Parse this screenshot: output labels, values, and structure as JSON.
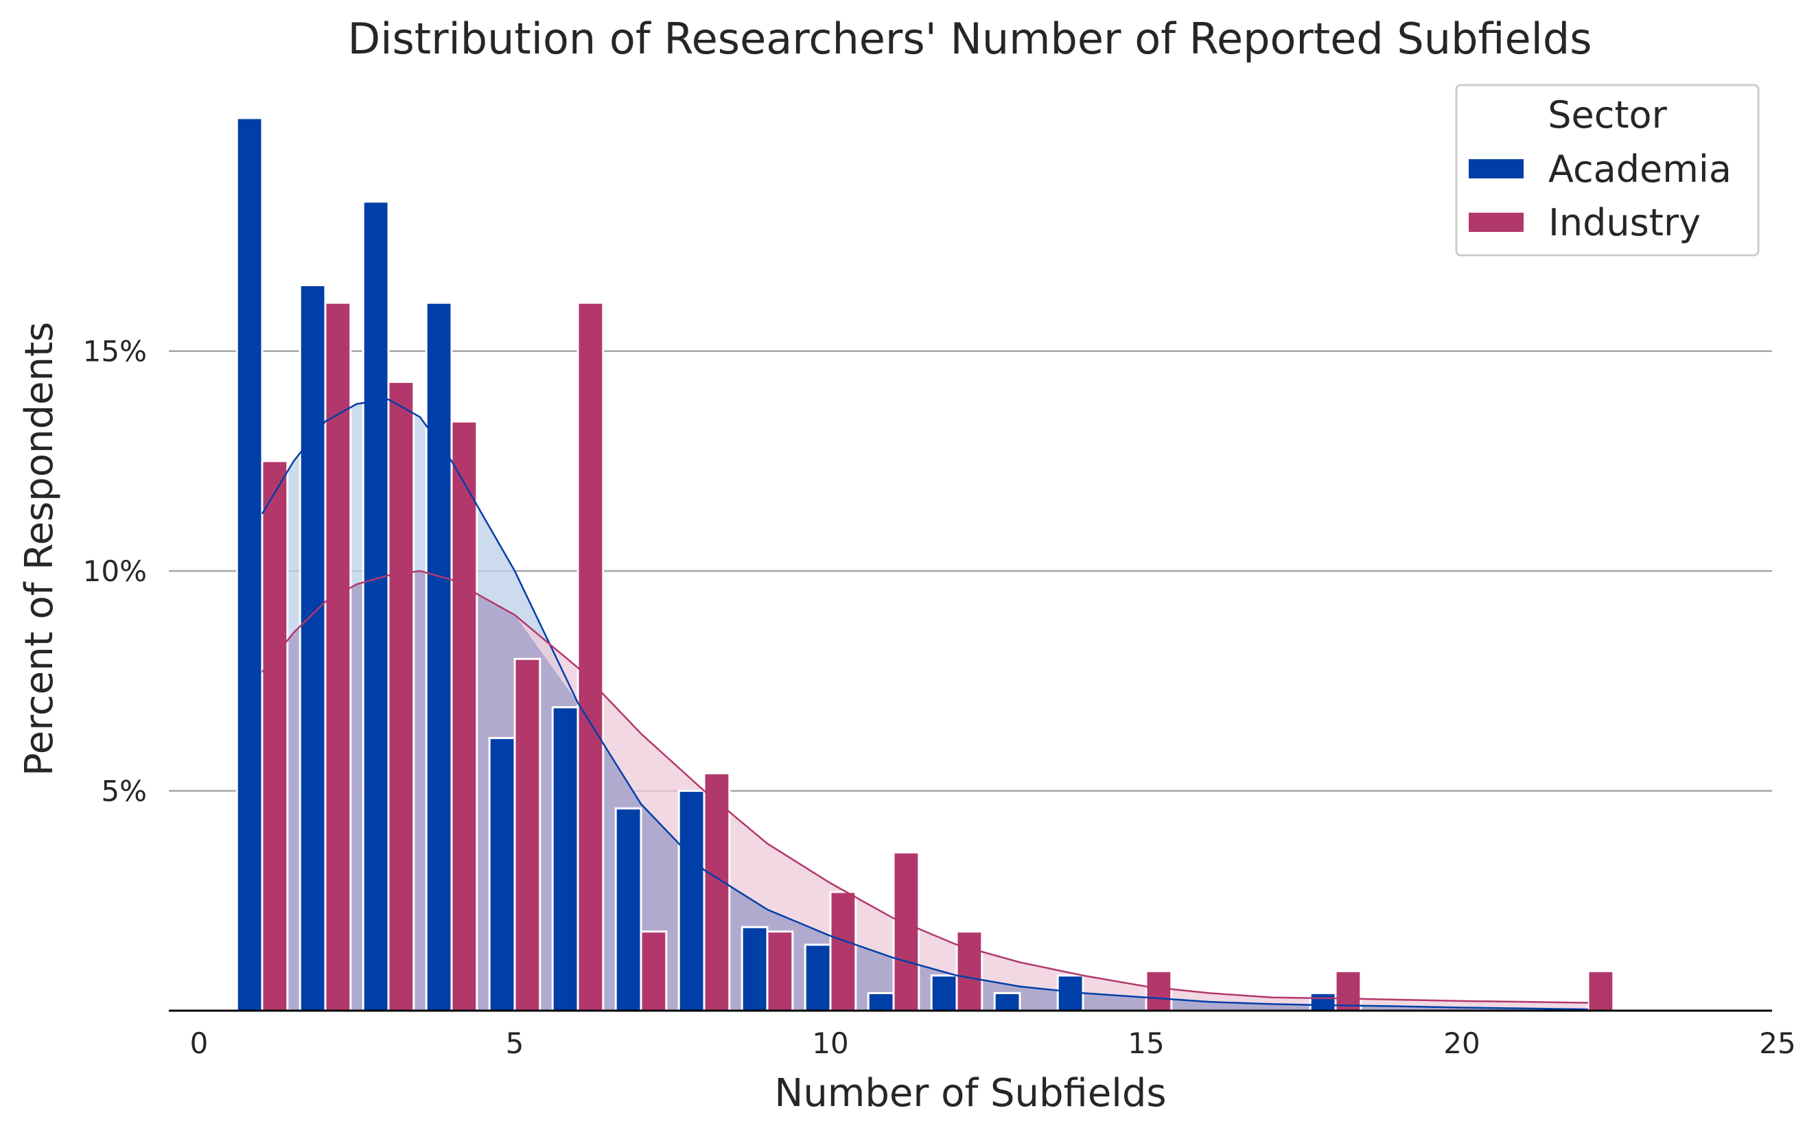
{
  "chart_data": {
    "type": "bar",
    "title": "Distribution of Researchers' Number of Reported Subfields",
    "xlabel": "Number of Subfields",
    "ylabel": "Percent of Respondents",
    "xlim": [
      -0.5,
      25
    ],
    "ylim": [
      0,
      20.8
    ],
    "x_ticks": [
      0,
      5,
      10,
      15,
      20,
      25
    ],
    "y_ticks": [
      5,
      10,
      15
    ],
    "y_tick_format": "%",
    "grid": "horizontal",
    "legend": {
      "title": "Sector",
      "position": "top-right"
    },
    "colors": {
      "Academia": "#003fa7",
      "Industry": "#b2386c",
      "Academia_fill": "#bccfe8",
      "Industry_fill": "#eccbd9",
      "Overlap_fill": "#aea8ce",
      "grid": "#a6a6a6",
      "axis": "#000000"
    },
    "x": [
      1,
      2,
      3,
      4,
      5,
      6,
      7,
      8,
      9,
      10,
      11,
      12,
      13,
      14,
      15,
      16,
      17,
      18,
      19,
      20,
      21,
      22
    ],
    "series": [
      {
        "name": "Academia",
        "values": [
          20.3,
          16.5,
          18.4,
          16.1,
          6.2,
          6.9,
          4.6,
          5.0,
          1.9,
          1.5,
          0.4,
          0.8,
          0.4,
          0.8,
          0,
          0,
          0,
          0.4,
          0,
          0,
          0,
          0
        ]
      },
      {
        "name": "Industry",
        "values": [
          12.5,
          16.1,
          14.3,
          13.4,
          8.0,
          16.1,
          1.8,
          5.4,
          1.8,
          2.7,
          3.6,
          1.8,
          0,
          0,
          0.9,
          0,
          0,
          0.9,
          0,
          0,
          0,
          0.9
        ]
      }
    ],
    "kde": [
      {
        "name": "Academia",
        "x": [
          1,
          1.5,
          2,
          2.5,
          3,
          3.5,
          4,
          5,
          6,
          7,
          8,
          9,
          10,
          11,
          12,
          13,
          14,
          15,
          16,
          17,
          18,
          19,
          20,
          21,
          22
        ],
        "y": [
          11.3,
          12.5,
          13.4,
          13.8,
          13.9,
          13.5,
          12.5,
          10.0,
          7.0,
          4.7,
          3.2,
          2.3,
          1.7,
          1.2,
          0.8,
          0.55,
          0.4,
          0.3,
          0.2,
          0.15,
          0.12,
          0.1,
          0.07,
          0.05,
          0.03
        ]
      },
      {
        "name": "Industry",
        "x": [
          1,
          1.5,
          2,
          2.5,
          3,
          3.5,
          4,
          5,
          6,
          7,
          8,
          9,
          10,
          11,
          12,
          13,
          14,
          15,
          16,
          17,
          18,
          19,
          20,
          21,
          22
        ],
        "y": [
          7.7,
          8.6,
          9.3,
          9.7,
          9.9,
          10.0,
          9.8,
          9.0,
          7.8,
          6.3,
          5.0,
          3.8,
          2.9,
          2.1,
          1.5,
          1.1,
          0.8,
          0.55,
          0.4,
          0.3,
          0.28,
          0.25,
          0.22,
          0.2,
          0.18
        ]
      }
    ]
  }
}
